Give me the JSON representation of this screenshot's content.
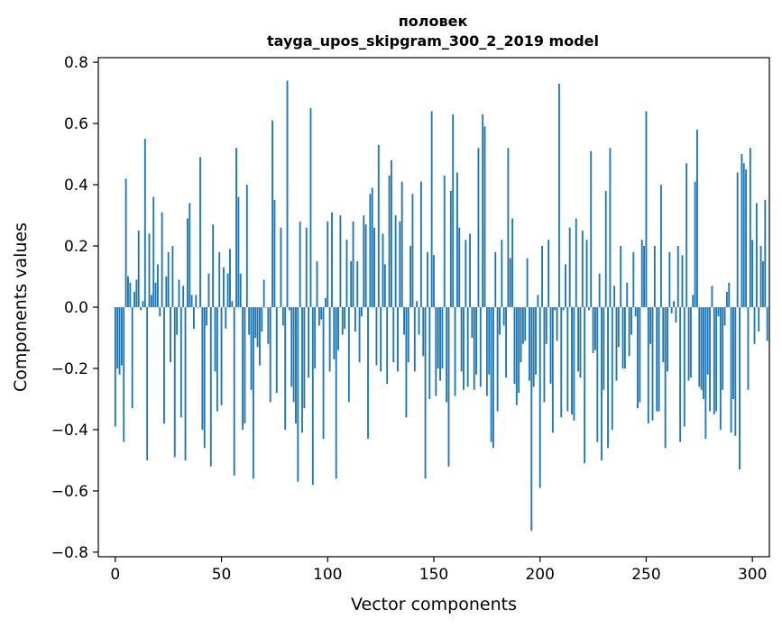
{
  "chart_data": {
    "type": "bar",
    "title_line1": "половек",
    "title_line2": "tayga_upos_skipgram_300_2_2019 model",
    "xlabel": "Vector components",
    "ylabel": "Components values",
    "xlim": [
      -8,
      308
    ],
    "ylim": [
      -0.815,
      0.815
    ],
    "xticks": [
      0,
      50,
      100,
      150,
      200,
      250,
      300
    ],
    "yticks": [
      -0.8,
      -0.6,
      -0.4,
      -0.2,
      0.0,
      0.2,
      0.4,
      0.6,
      0.8
    ],
    "ytick_labels": [
      "−0.8",
      "−0.6",
      "−0.4",
      "−0.2",
      "0.0",
      "0.2",
      "0.4",
      "0.6",
      "0.8"
    ],
    "bar_color": "#1f77b4",
    "grid": false,
    "values": [
      -0.39,
      -0.2,
      -0.22,
      -0.19,
      -0.44,
      0.42,
      0.1,
      0.08,
      -0.33,
      0.05,
      0.09,
      0.25,
      -0.01,
      0.02,
      0.55,
      -0.5,
      0.24,
      0.04,
      0.36,
      0.08,
      0.14,
      -0.03,
      0.31,
      -0.38,
      0.1,
      0.18,
      -0.18,
      0.2,
      -0.49,
      -0.09,
      0.09,
      -0.36,
      0.07,
      -0.5,
      0.29,
      0.34,
      0.04,
      -0.07,
      0.04,
      0.0,
      0.49,
      -0.4,
      -0.46,
      -0.06,
      0.11,
      -0.52,
      0.27,
      -0.21,
      -0.34,
      0.18,
      -0.32,
      0.13,
      -0.07,
      0.11,
      0.19,
      0.02,
      -0.55,
      0.52,
      0.36,
      0.11,
      -0.4,
      -0.38,
      0.4,
      -0.09,
      -0.27,
      -0.56,
      -0.1,
      -0.13,
      -0.19,
      -0.08,
      0.09,
      0.0,
      -0.12,
      -0.31,
      0.61,
      0.35,
      -0.28,
      0.0,
      0.26,
      -0.06,
      -0.4,
      0.74,
      -0.01,
      -0.26,
      -0.31,
      -0.38,
      -0.57,
      0.28,
      -0.41,
      -0.33,
      0.26,
      -0.23,
      0.65,
      -0.58,
      -0.2,
      0.15,
      -0.06,
      -0.04,
      -0.43,
      0.03,
      0.28,
      -0.21,
      0.31,
      -0.17,
      -0.56,
      -0.14,
      0.3,
      -0.09,
      -0.07,
      0.22,
      -0.31,
      0.15,
      0.28,
      -0.08,
      0.15,
      -0.18,
      -0.03,
      0.3,
      0.27,
      -0.43,
      0.37,
      0.39,
      0.26,
      -0.19,
      0.53,
      -0.21,
      0.24,
      0.14,
      -0.25,
      0.43,
      0.48,
      -0.18,
      0.3,
      -0.21,
      0.28,
      0.41,
      -0.09,
      -0.36,
      -0.18,
      0.2,
      0.37,
      -0.21,
      0.02,
      -0.09,
      0.41,
      -0.16,
      -0.56,
      0.18,
      -0.3,
      0.64,
      0.17,
      -0.29,
      -0.2,
      -0.24,
      -0.2,
      0.43,
      -0.31,
      -0.52,
      0.38,
      0.63,
      -0.29,
      0.44,
      0.26,
      -0.21,
      -0.27,
      0.22,
      -0.26,
      0.24,
      -0.1,
      -0.27,
      -0.22,
      0.52,
      -0.26,
      0.63,
      0.59,
      -0.29,
      -0.22,
      -0.44,
      -0.46,
      0.18,
      -0.34,
      -0.09,
      0.22,
      -0.06,
      -0.23,
      0.52,
      0.16,
      0.29,
      -0.25,
      -0.32,
      -0.28,
      -0.18,
      -0.12,
      -0.11,
      0.16,
      -0.24,
      -0.73,
      -0.26,
      -0.22,
      0.04,
      -0.59,
      0.2,
      -0.31,
      -0.12,
      0.22,
      -0.25,
      -0.41,
      -0.01,
      -0.11,
      0.73,
      -0.36,
      -0.01,
      0.14,
      -0.34,
      0.26,
      -0.35,
      -0.37,
      0.29,
      -0.21,
      -0.23,
      0.25,
      -0.51,
      0.22,
      -0.01,
      0.51,
      -0.15,
      -0.14,
      -0.44,
      0.11,
      -0.5,
      -0.27,
      0.38,
      -0.46,
      0.52,
      -0.4,
      0.07,
      -0.24,
      -0.13,
      0.2,
      -0.2,
      -0.2,
      0.08,
      -0.16,
      -0.09,
      0.18,
      -0.03,
      -0.33,
      -0.31,
      0.22,
      0.2,
      0.64,
      -0.38,
      -0.12,
      -0.37,
      0.2,
      -0.34,
      -0.34,
      0.4,
      -0.18,
      -0.46,
      -0.21,
      0.18,
      -0.02,
      0.02,
      -0.05,
      0.2,
      -0.44,
      0.17,
      -0.39,
      0.47,
      -0.24,
      -0.23,
      0.04,
      0.41,
      0.58,
      -0.26,
      -0.27,
      -0.3,
      -0.43,
      -0.22,
      -0.34,
      0.07,
      -0.35,
      -0.34,
      -0.03,
      -0.4,
      -0.27,
      -0.06,
      0.05,
      0.08,
      -0.41,
      -0.3,
      -0.42,
      0.44,
      -0.53,
      0.5,
      0.47,
      0.45,
      -0.27,
      0.52,
      0.22,
      -0.12,
      0.34,
      -0.08,
      0.2,
      0.15,
      0.35,
      -0.11
    ]
  }
}
